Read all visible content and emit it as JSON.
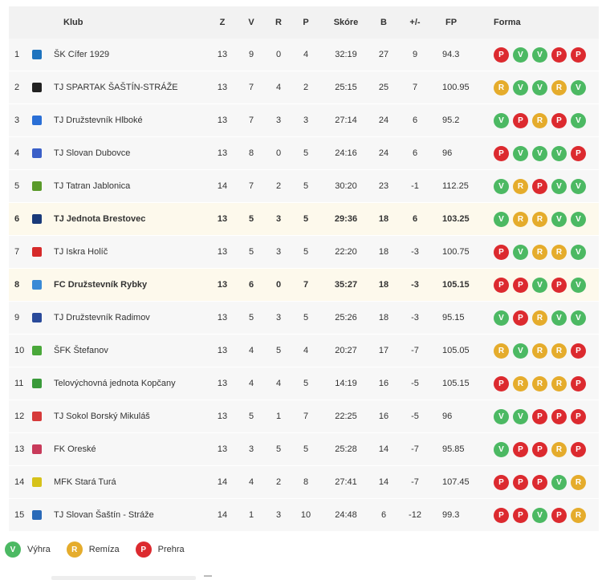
{
  "headers": {
    "klub": "Klub",
    "z": "Z",
    "v": "V",
    "r": "R",
    "p": "P",
    "skore": "Skóre",
    "b": "B",
    "diff": "+/-",
    "fp": "FP",
    "forma": "Forma"
  },
  "rows": [
    {
      "pos": "1",
      "club": "ŠK Cífer 1929",
      "z": "13",
      "v": "9",
      "r": "0",
      "p": "4",
      "score": "32:19",
      "b": "27",
      "diff": "9",
      "fp": "94.3",
      "form": [
        "P",
        "V",
        "V",
        "P",
        "P"
      ],
      "logo": "#1e73be",
      "hl": false
    },
    {
      "pos": "2",
      "club": "TJ SPARTAK ŠAŠTÍN-STRÁŽE",
      "z": "13",
      "v": "7",
      "r": "4",
      "p": "2",
      "score": "25:15",
      "b": "25",
      "diff": "7",
      "fp": "100.95",
      "form": [
        "R",
        "V",
        "V",
        "R",
        "V"
      ],
      "logo": "#222222",
      "hl": false
    },
    {
      "pos": "3",
      "club": "TJ Družstevník Hlboké",
      "z": "13",
      "v": "7",
      "r": "3",
      "p": "3",
      "score": "27:14",
      "b": "24",
      "diff": "6",
      "fp": "95.2",
      "form": [
        "V",
        "P",
        "R",
        "P",
        "V"
      ],
      "logo": "#2a6fd6",
      "hl": false
    },
    {
      "pos": "4",
      "club": "TJ Slovan Dubovce",
      "z": "13",
      "v": "8",
      "r": "0",
      "p": "5",
      "score": "24:16",
      "b": "24",
      "diff": "6",
      "fp": "96",
      "form": [
        "P",
        "V",
        "V",
        "V",
        "P"
      ],
      "logo": "#3a5fc8",
      "hl": false
    },
    {
      "pos": "5",
      "club": "TJ Tatran Jablonica",
      "z": "14",
      "v": "7",
      "r": "2",
      "p": "5",
      "score": "30:20",
      "b": "23",
      "diff": "-1",
      "fp": "112.25",
      "form": [
        "V",
        "R",
        "P",
        "V",
        "V"
      ],
      "logo": "#5a9a2a",
      "hl": false
    },
    {
      "pos": "6",
      "club": "TJ Jednota Brestovec",
      "z": "13",
      "v": "5",
      "r": "3",
      "p": "5",
      "score": "29:36",
      "b": "18",
      "diff": "6",
      "fp": "103.25",
      "form": [
        "V",
        "R",
        "R",
        "V",
        "V"
      ],
      "logo": "#1a3a7a",
      "hl": true
    },
    {
      "pos": "7",
      "club": "TJ Iskra Holíč",
      "z": "13",
      "v": "5",
      "r": "3",
      "p": "5",
      "score": "22:20",
      "b": "18",
      "diff": "-3",
      "fp": "100.75",
      "form": [
        "P",
        "V",
        "R",
        "R",
        "V"
      ],
      "logo": "#d62a2a",
      "hl": false
    },
    {
      "pos": "8",
      "club": "FC Družstevník Rybky",
      "z": "13",
      "v": "6",
      "r": "0",
      "p": "7",
      "score": "35:27",
      "b": "18",
      "diff": "-3",
      "fp": "105.15",
      "form": [
        "P",
        "P",
        "V",
        "P",
        "V"
      ],
      "logo": "#3a8ad6",
      "hl": true
    },
    {
      "pos": "9",
      "club": "TJ Družstevník Radimov",
      "z": "13",
      "v": "5",
      "r": "3",
      "p": "5",
      "score": "25:26",
      "b": "18",
      "diff": "-3",
      "fp": "95.15",
      "form": [
        "V",
        "P",
        "R",
        "V",
        "V"
      ],
      "logo": "#2a4a9a",
      "hl": false
    },
    {
      "pos": "10",
      "club": "ŠFK Štefanov",
      "z": "13",
      "v": "4",
      "r": "5",
      "p": "4",
      "score": "20:27",
      "b": "17",
      "diff": "-7",
      "fp": "105.05",
      "form": [
        "R",
        "V",
        "R",
        "R",
        "P"
      ],
      "logo": "#4aa83a",
      "hl": false
    },
    {
      "pos": "11",
      "club": "Telovýchovná jednota Kopčany",
      "z": "13",
      "v": "4",
      "r": "4",
      "p": "5",
      "score": "14:19",
      "b": "16",
      "diff": "-5",
      "fp": "105.15",
      "form": [
        "P",
        "R",
        "R",
        "R",
        "P"
      ],
      "logo": "#3a9a3a",
      "hl": false
    },
    {
      "pos": "12",
      "club": "TJ Sokol Borský Mikuláš",
      "z": "13",
      "v": "5",
      "r": "1",
      "p": "7",
      "score": "22:25",
      "b": "16",
      "diff": "-5",
      "fp": "96",
      "form": [
        "V",
        "V",
        "P",
        "P",
        "P"
      ],
      "logo": "#d63a3a",
      "hl": false
    },
    {
      "pos": "13",
      "club": "FK Oreské",
      "z": "13",
      "v": "3",
      "r": "5",
      "p": "5",
      "score": "25:28",
      "b": "14",
      "diff": "-7",
      "fp": "95.85",
      "form": [
        "V",
        "P",
        "P",
        "R",
        "P"
      ],
      "logo": "#c83a5a",
      "hl": false
    },
    {
      "pos": "14",
      "club": "MFK Stará Turá",
      "z": "14",
      "v": "4",
      "r": "2",
      "p": "8",
      "score": "27:41",
      "b": "14",
      "diff": "-7",
      "fp": "107.45",
      "form": [
        "P",
        "P",
        "P",
        "V",
        "R"
      ],
      "logo": "#d6c21a",
      "hl": false
    },
    {
      "pos": "15",
      "club": "TJ Slovan Šaštín - Stráže",
      "z": "14",
      "v": "1",
      "r": "3",
      "p": "10",
      "score": "24:48",
      "b": "6",
      "diff": "-12",
      "fp": "99.3",
      "form": [
        "P",
        "P",
        "V",
        "P",
        "R"
      ],
      "logo": "#2a6ab8",
      "hl": false
    }
  ],
  "legend": [
    {
      "code": "V",
      "label": "Výhra"
    },
    {
      "code": "R",
      "label": "Remíza"
    },
    {
      "code": "P",
      "label": "Prehra"
    }
  ],
  "colors": {
    "win": "#4cb963",
    "draw": "#e5ac2c",
    "loss": "#dc2a2f"
  }
}
